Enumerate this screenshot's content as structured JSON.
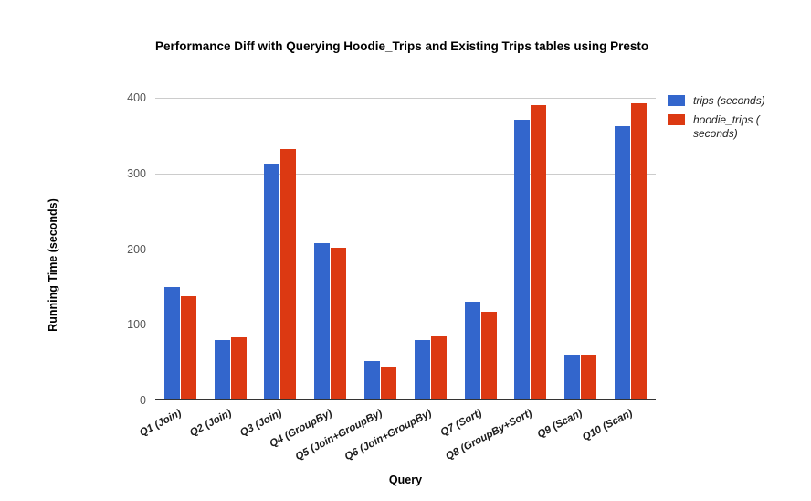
{
  "chart_data": {
    "type": "bar",
    "title": "Performance Diff with Querying Hoodie_Trips and Existing Trips tables using Presto",
    "xlabel": "Query",
    "ylabel": "Running Time (seconds)",
    "ylim": [
      0,
      400
    ],
    "yticks": [
      0,
      100,
      200,
      300,
      400
    ],
    "grid": true,
    "legend_position": "right",
    "categories": [
      "Q1 (Join)",
      "Q2 (Join)",
      "Q3 (Join)",
      "Q4 (GroupBy)",
      "Q5 (Join+GroupBy)",
      "Q6 (Join+GroupBy)",
      "Q7 (Sort)",
      "Q8 (GroupBy+Sort)",
      "Q9 (Scan)",
      "Q10 (Scan)"
    ],
    "series": [
      {
        "name": "trips (seconds)",
        "color": "#3366CC",
        "values": [
          150,
          80,
          313,
          208,
          52,
          80,
          131,
          371,
          61,
          363
        ]
      },
      {
        "name": "hoodie_trips ( seconds)",
        "color": "#DC3912",
        "values": [
          138,
          84,
          332,
          202,
          45,
          85,
          117,
          390,
          60,
          393
        ]
      }
    ]
  },
  "colors": {
    "gridline": "#cccccc",
    "baseline": "#333333",
    "tick_label": "#555555",
    "title_text": "#000000"
  }
}
